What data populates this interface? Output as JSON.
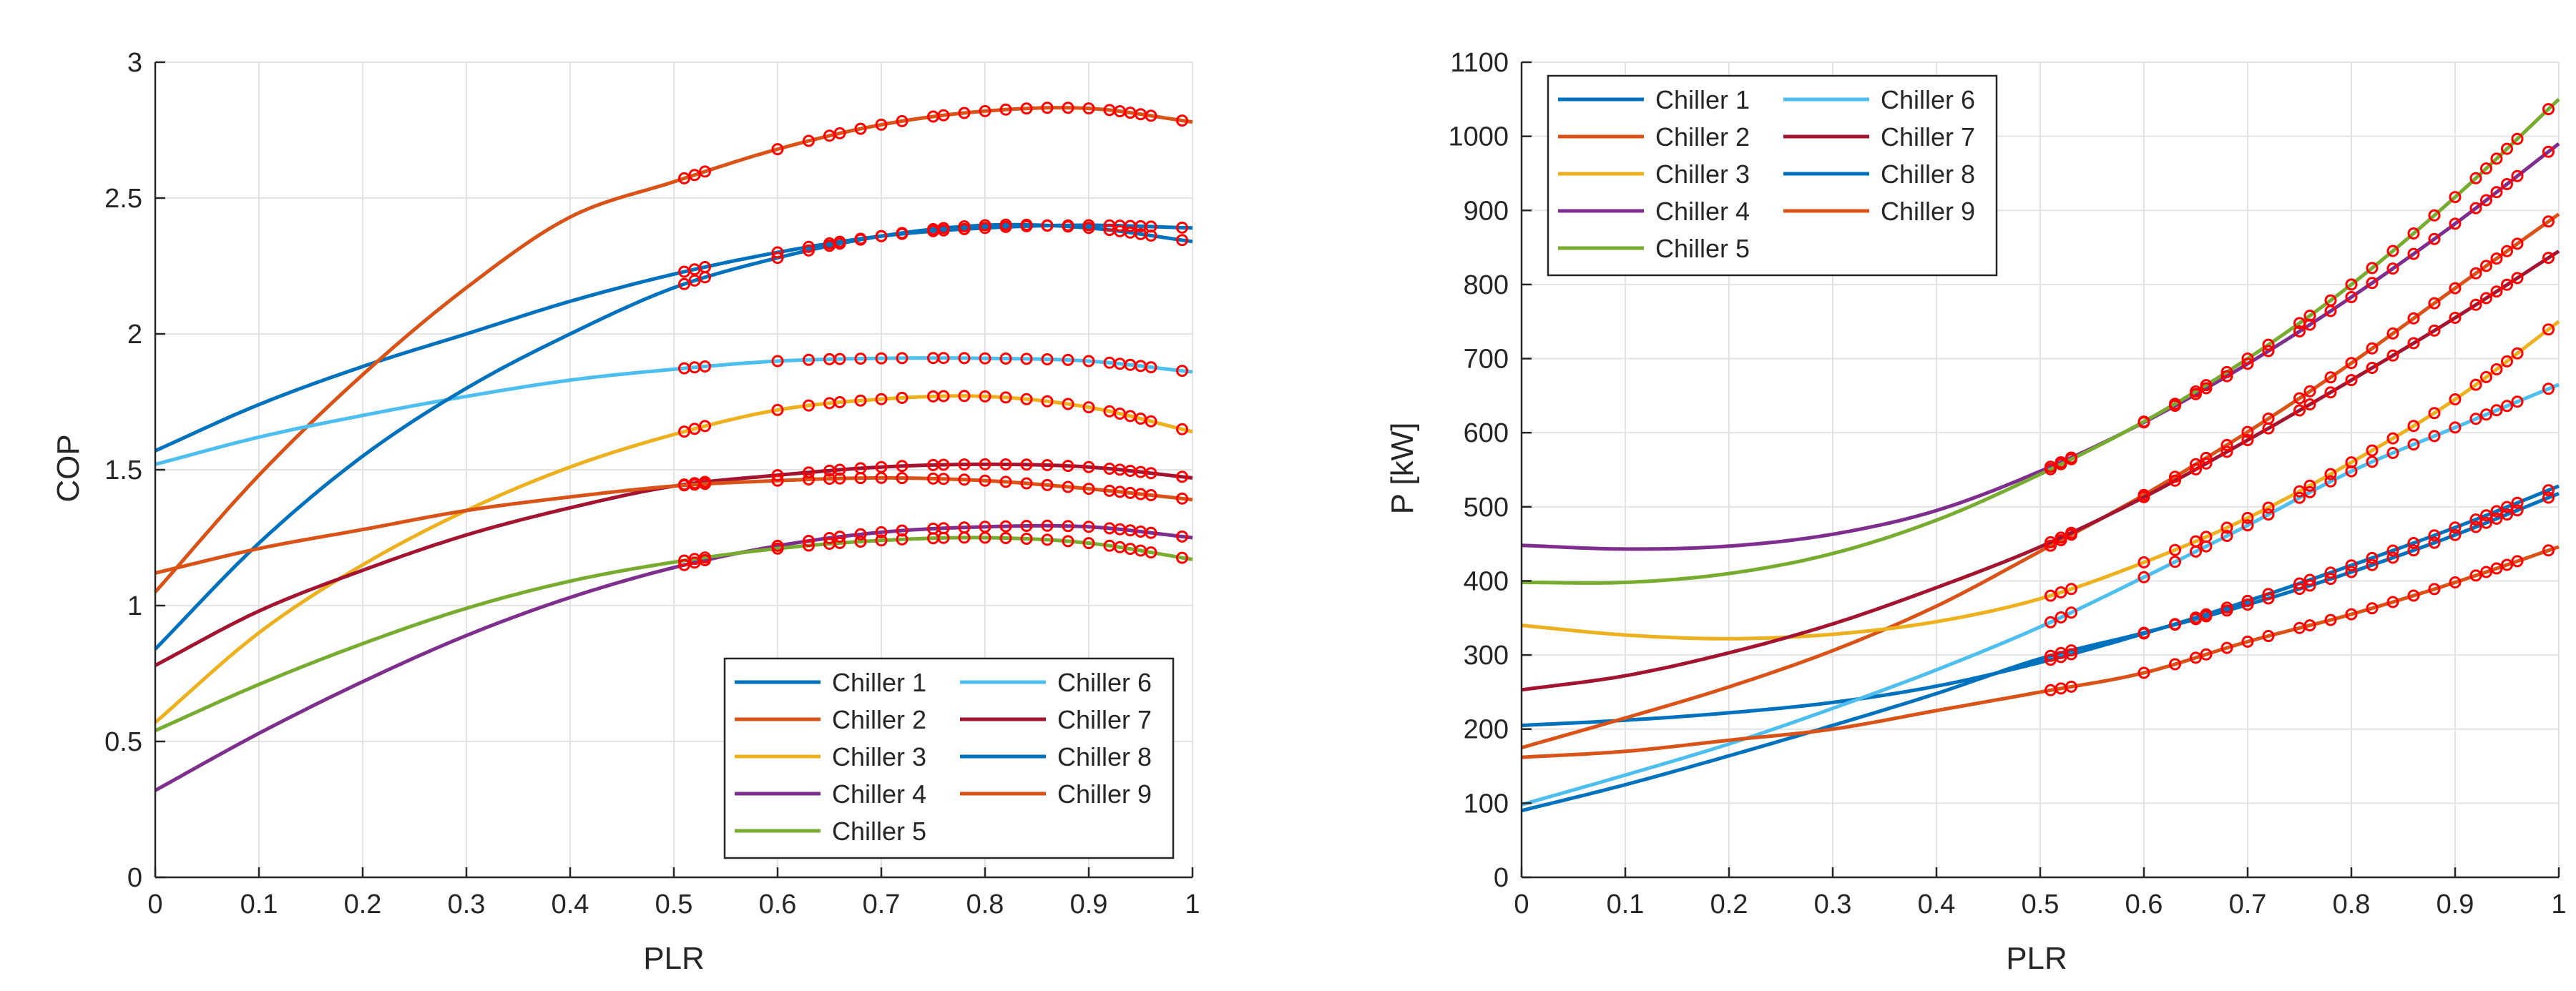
{
  "colors": {
    "chiller_1": "#0072BD",
    "chiller_2": "#D95319",
    "chiller_3": "#EDB120",
    "chiller_4": "#7E2F8E",
    "chiller_5": "#77AC30",
    "chiller_6": "#4DBEEE",
    "chiller_7": "#A2142F",
    "chiller_8": "#0072BD",
    "chiller_9": "#D95319",
    "marker": "#FF0000"
  },
  "chart_data": [
    {
      "type": "line",
      "xlabel": "PLR",
      "ylabel": "COP",
      "xlim": [
        0,
        1
      ],
      "ylim": [
        0,
        3
      ],
      "xticks": [
        0,
        0.1,
        0.2,
        0.3,
        0.4,
        0.5,
        0.6,
        0.7,
        0.8,
        0.9,
        1
      ],
      "xtick_labels": [
        "0",
        "0.1",
        "0.2",
        "0.3",
        "0.4",
        "0.5",
        "0.6",
        "0.7",
        "0.8",
        "0.9",
        "1"
      ],
      "yticks": [
        0,
        0.5,
        1,
        1.5,
        2,
        2.5,
        3
      ],
      "ytick_labels": [
        "0",
        "0.5",
        "1",
        "1.5",
        "2",
        "2.5",
        "3"
      ],
      "grid": true,
      "legend_position": "bottom-right",
      "legend_columns": 2,
      "x": [
        0,
        0.1,
        0.2,
        0.3,
        0.4,
        0.5,
        0.6,
        0.7,
        0.8,
        0.9,
        1.0
      ],
      "series": [
        {
          "name": "Chiller 1",
          "values": [
            1.57,
            1.74,
            1.88,
            2.0,
            2.12,
            2.22,
            2.3,
            2.36,
            2.39,
            2.4,
            2.39
          ]
        },
        {
          "name": "Chiller 2",
          "values": [
            1.05,
            1.48,
            1.85,
            2.17,
            2.43,
            2.56,
            2.68,
            2.77,
            2.82,
            2.83,
            2.78
          ]
        },
        {
          "name": "Chiller 3",
          "values": [
            0.57,
            0.9,
            1.15,
            1.35,
            1.51,
            1.63,
            1.72,
            1.76,
            1.77,
            1.73,
            1.64
          ]
        },
        {
          "name": "Chiller 4",
          "values": [
            0.32,
            0.53,
            0.72,
            0.89,
            1.03,
            1.14,
            1.22,
            1.27,
            1.29,
            1.29,
            1.25
          ]
        },
        {
          "name": "Chiller 5",
          "values": [
            0.54,
            0.71,
            0.86,
            0.99,
            1.09,
            1.16,
            1.21,
            1.24,
            1.25,
            1.23,
            1.17
          ]
        },
        {
          "name": "Chiller 6",
          "values": [
            1.52,
            1.62,
            1.7,
            1.77,
            1.83,
            1.87,
            1.9,
            1.91,
            1.91,
            1.9,
            1.86
          ]
        },
        {
          "name": "Chiller 7",
          "values": [
            0.78,
            0.98,
            1.13,
            1.26,
            1.36,
            1.44,
            1.48,
            1.51,
            1.52,
            1.51,
            1.47
          ]
        },
        {
          "name": "Chiller 8",
          "values": [
            0.84,
            1.23,
            1.55,
            1.8,
            2.0,
            2.17,
            2.28,
            2.36,
            2.4,
            2.39,
            2.34
          ]
        },
        {
          "name": "Chiller 9",
          "values": [
            1.12,
            1.21,
            1.28,
            1.35,
            1.4,
            1.44,
            1.46,
            1.47,
            1.46,
            1.43,
            1.39
          ]
        }
      ],
      "marker_plr": [
        0.51,
        0.52,
        0.53,
        0.6,
        0.63,
        0.65,
        0.66,
        0.68,
        0.7,
        0.72,
        0.75,
        0.76,
        0.78,
        0.8,
        0.82,
        0.84,
        0.86,
        0.88,
        0.9,
        0.92,
        0.93,
        0.94,
        0.95,
        0.96,
        0.99
      ]
    },
    {
      "type": "line",
      "xlabel": "PLR",
      "ylabel": "P [kW]",
      "xlim": [
        0,
        1
      ],
      "ylim": [
        0,
        1100
      ],
      "xticks": [
        0,
        0.1,
        0.2,
        0.3,
        0.4,
        0.5,
        0.6,
        0.7,
        0.8,
        0.9,
        1
      ],
      "xtick_labels": [
        "0",
        "0.1",
        "0.2",
        "0.3",
        "0.4",
        "0.5",
        "0.6",
        "0.7",
        "0.8",
        "0.9",
        "1"
      ],
      "yticks": [
        0,
        100,
        200,
        300,
        400,
        500,
        600,
        700,
        800,
        900,
        1000,
        1100
      ],
      "ytick_labels": [
        "0",
        "100",
        "200",
        "300",
        "400",
        "500",
        "600",
        "700",
        "800",
        "900",
        "1000",
        "1100"
      ],
      "grid": true,
      "legend_position": "top-left",
      "legend_columns": 2,
      "x": [
        0,
        0.1,
        0.2,
        0.3,
        0.4,
        0.5,
        0.6,
        0.7,
        0.8,
        0.9,
        1.0
      ],
      "series": [
        {
          "name": "Chiller 1",
          "values": [
            205,
            212,
            222,
            236,
            258,
            290,
            329,
            373,
            421,
            472,
            528
          ]
        },
        {
          "name": "Chiller 2",
          "values": [
            175,
            215,
            257,
            306,
            366,
            440,
            516,
            601,
            694,
            795,
            895
          ]
        },
        {
          "name": "Chiller 3",
          "values": [
            340,
            327,
            322,
            328,
            345,
            376,
            425,
            485,
            560,
            645,
            750
          ]
        },
        {
          "name": "Chiller 4",
          "values": [
            448,
            443,
            447,
            463,
            495,
            548,
            614,
            693,
            783,
            882,
            990
          ]
        },
        {
          "name": "Chiller 5",
          "values": [
            398,
            398,
            410,
            437,
            482,
            544,
            615,
            700,
            800,
            918,
            1050
          ]
        },
        {
          "name": "Chiller 6",
          "values": [
            98,
            138,
            180,
            228,
            280,
            338,
            405,
            475,
            548,
            607,
            665
          ]
        },
        {
          "name": "Chiller 7",
          "values": [
            253,
            272,
            303,
            342,
            391,
            446,
            513,
            590,
            671,
            755,
            845
          ]
        },
        {
          "name": "Chiller 8",
          "values": [
            90,
            125,
            164,
            205,
            248,
            295,
            330,
            368,
            412,
            462,
            518
          ]
        },
        {
          "name": "Chiller 9",
          "values": [
            162,
            170,
            185,
            200,
            225,
            250,
            276,
            318,
            355,
            398,
            446
          ]
        }
      ],
      "marker_plr": [
        0.51,
        0.52,
        0.53,
        0.6,
        0.63,
        0.65,
        0.66,
        0.68,
        0.7,
        0.72,
        0.75,
        0.76,
        0.78,
        0.8,
        0.82,
        0.84,
        0.86,
        0.88,
        0.9,
        0.92,
        0.93,
        0.94,
        0.95,
        0.96,
        0.99
      ]
    }
  ]
}
